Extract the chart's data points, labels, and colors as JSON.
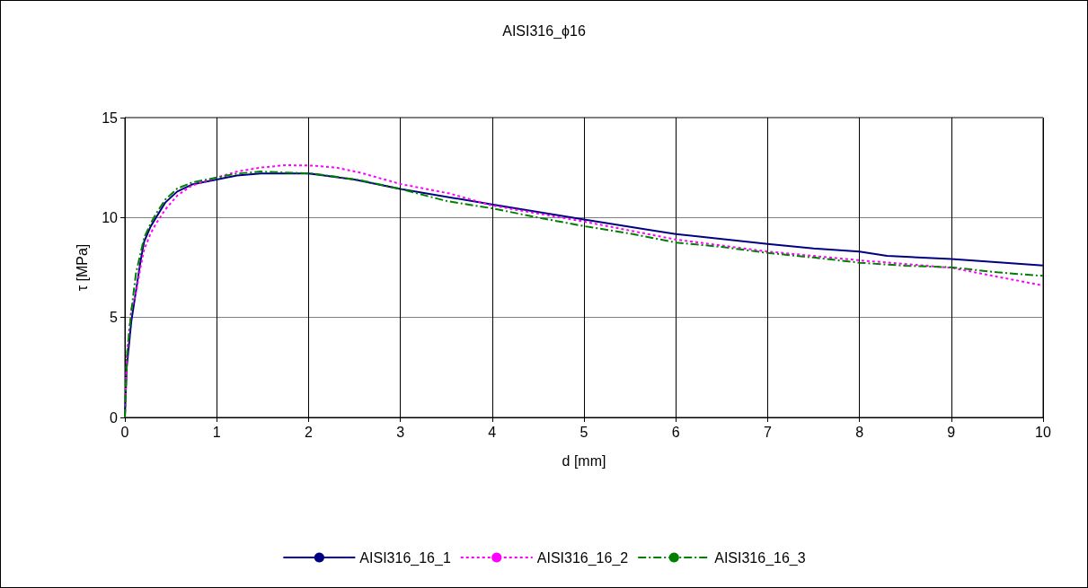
{
  "chart_data": {
    "type": "line",
    "title": "AISI316_ϕ16",
    "xlabel": "d [mm]",
    "ylabel": "τ [MPa]",
    "xlim": [
      0,
      10
    ],
    "xticks": [
      0,
      1,
      2,
      3,
      4,
      5,
      6,
      7,
      8,
      9,
      10
    ],
    "ylim": [
      0,
      15
    ],
    "yticks": [
      0,
      5,
      10,
      15
    ],
    "grid": true,
    "legend": "bottom",
    "marker": "none",
    "series": [
      {
        "name": "AISI316_16_1",
        "color": "#000080",
        "line_style": "solid",
        "x": [
          0,
          0.02,
          0.07,
          0.12,
          0.17,
          0.21,
          0.28,
          0.34,
          0.44,
          0.57,
          0.73,
          1.0,
          1.22,
          1.48,
          2.0,
          2.17,
          2.5,
          3,
          4,
          5,
          6,
          7,
          7.5,
          8,
          8.3,
          9,
          10
        ],
        "values": [
          0,
          2.5,
          4.8,
          6.3,
          7.8,
          8.8,
          9.55,
          10.0,
          10.75,
          11.3,
          11.65,
          11.9,
          12.1,
          12.2,
          12.2,
          12.1,
          11.9,
          11.43,
          10.65,
          9.9,
          9.17,
          8.68,
          8.45,
          8.3,
          8.08,
          7.93,
          7.6
        ]
      },
      {
        "name": "AISI316_16_2",
        "color": "#ff00ff",
        "line_style": "dotted",
        "x": [
          0,
          0.02,
          0.07,
          0.12,
          0.17,
          0.21,
          0.28,
          0.34,
          0.44,
          0.57,
          0.73,
          1.0,
          1.22,
          1.48,
          1.75,
          2.05,
          2.3,
          2.56,
          3,
          3.54,
          4,
          5,
          6,
          7,
          8,
          9,
          9.5,
          10
        ],
        "values": [
          0,
          3.0,
          5.4,
          6.2,
          7.5,
          8.4,
          9.2,
          9.7,
          10.4,
          11.1,
          11.6,
          12.0,
          12.3,
          12.5,
          12.62,
          12.6,
          12.5,
          12.25,
          11.68,
          11.2,
          10.6,
          9.8,
          8.9,
          8.3,
          7.86,
          7.49,
          7.04,
          6.6
        ]
      },
      {
        "name": "AISI316_16_3",
        "color": "#008000",
        "line_style": "dashed",
        "x": [
          0,
          0.02,
          0.07,
          0.12,
          0.17,
          0.21,
          0.28,
          0.34,
          0.44,
          0.57,
          0.73,
          1.0,
          1.22,
          1.48,
          2.05,
          2.56,
          3,
          3.5,
          4,
          4.5,
          5,
          5.5,
          6,
          6.5,
          7,
          7.5,
          8,
          8.5,
          9,
          9.5,
          10
        ],
        "values": [
          0,
          3.0,
          5.3,
          7.2,
          8.2,
          9.0,
          9.7,
          10.2,
          10.9,
          11.45,
          11.75,
          12.0,
          12.2,
          12.3,
          12.2,
          11.87,
          11.43,
          10.83,
          10.46,
          10.0,
          9.57,
          9.2,
          8.75,
          8.53,
          8.23,
          8.0,
          7.74,
          7.59,
          7.51,
          7.26,
          7.08
        ]
      }
    ]
  }
}
